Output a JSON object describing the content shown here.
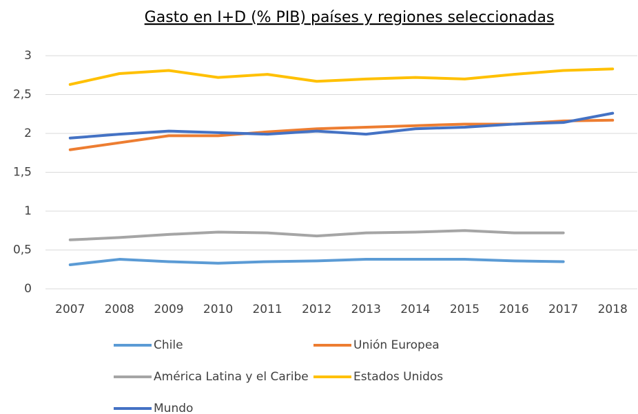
{
  "chart_data": {
    "type": "line",
    "title": "Gasto en I+D (% PIB) países y regiones seleccionadas",
    "categories": [
      "2007",
      "2008",
      "2009",
      "2010",
      "2011",
      "2012",
      "2013",
      "2014",
      "2015",
      "2016",
      "2017",
      "2018"
    ],
    "series": [
      {
        "name": "Chile",
        "color": "#5b9bd5",
        "values": [
          0.31,
          0.38,
          0.35,
          0.33,
          0.35,
          0.36,
          0.38,
          0.38,
          0.38,
          0.36,
          0.35,
          null
        ]
      },
      {
        "name": "Unión Europea",
        "color": "#ed7d31",
        "values": [
          1.79,
          1.88,
          1.97,
          1.97,
          2.02,
          2.06,
          2.08,
          2.1,
          2.12,
          2.12,
          2.16,
          2.17
        ]
      },
      {
        "name": "América Latina y el Caribe",
        "color": "#a5a5a5",
        "values": [
          0.63,
          0.66,
          0.7,
          0.73,
          0.72,
          0.68,
          0.72,
          0.73,
          0.75,
          0.72,
          0.72,
          null
        ]
      },
      {
        "name": "Estados Unidos",
        "color": "#ffc000",
        "values": [
          2.63,
          2.77,
          2.81,
          2.72,
          2.76,
          2.67,
          2.7,
          2.72,
          2.7,
          2.76,
          2.81,
          2.83
        ]
      },
      {
        "name": "Mundo",
        "color": "#4472c4",
        "values": [
          1.94,
          1.99,
          2.03,
          2.01,
          1.99,
          2.03,
          1.99,
          2.06,
          2.08,
          2.12,
          2.14,
          2.26
        ]
      }
    ],
    "ylim": [
      0,
      3
    ],
    "yticks": [
      0,
      {
        "value": 0.5,
        "label": "0,5"
      },
      1,
      {
        "value": 1.5,
        "label": "1,5"
      },
      2,
      {
        "value": 2.5,
        "label": "2,5"
      },
      3
    ],
    "grid": true,
    "legend": "bottom"
  }
}
